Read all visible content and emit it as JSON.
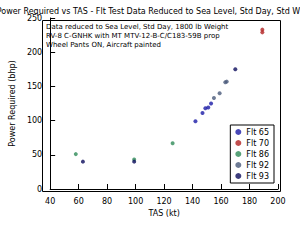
{
  "chart_data": {
    "type": "scatter",
    "title": "Power Required vs TAS - Flt Test Data Reduced to Sea Level, Std Day, Std Wt",
    "annotations": [
      "Data reduced to Sea Level, Std Day, 1800 lb Weight",
      "RV-8 C-GNHK with MT MTV-12-B-C/C183-59B prop",
      "Wheel Pants ON, Aircraft painted"
    ],
    "x_label": "TAS (kt)",
    "y_label": "Power Required (bhp)",
    "xlim": [
      40,
      200
    ],
    "xticks": [
      40,
      60,
      80,
      100,
      120,
      140,
      160,
      180,
      200
    ],
    "ylim": [
      0,
      250
    ],
    "yticks": [
      0,
      50,
      100,
      150,
      200,
      250
    ],
    "grid": false,
    "legend": "lower right",
    "marker": "circle",
    "series": [
      {
        "name": "Flt 65",
        "color": "#1a1aa6",
        "x": [
          142,
          147,
          149,
          151,
          153
        ],
        "values": [
          99,
          111,
          118,
          119,
          125
        ]
      },
      {
        "name": "Flt 70",
        "color": "#b22222",
        "x": [
          189,
          189
        ],
        "values": [
          233,
          229
        ]
      },
      {
        "name": "Flt 86",
        "color": "#2e8b57",
        "x": [
          58,
          99,
          126
        ],
        "values": [
          51,
          43,
          67
        ]
      },
      {
        "name": "Flt 92",
        "color": "#4a5a7a",
        "x": [
          155,
          159,
          163,
          164
        ],
        "values": [
          133,
          140,
          156,
          157
        ]
      },
      {
        "name": "Flt 93",
        "color": "#0d0d5c",
        "x": [
          63,
          99,
          170
        ],
        "values": [
          40,
          40,
          175
        ]
      }
    ]
  }
}
